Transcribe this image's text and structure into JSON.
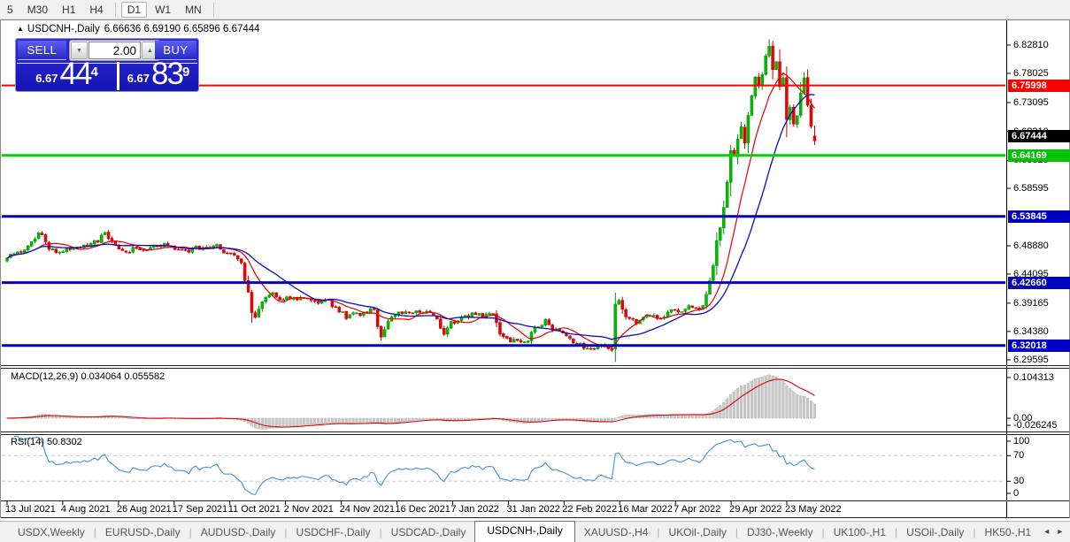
{
  "toolbar": {
    "items": [
      "5",
      "M30",
      "H1",
      "H4",
      "D1",
      "W1",
      "MN"
    ],
    "active": "D1"
  },
  "chart": {
    "collapse_icon": "▲",
    "title_symbol": "USDCNH-,Daily",
    "title_values": "6.66636 6.69190 6.65896 6.67444"
  },
  "trade_panel": {
    "sell_label": "SELL",
    "buy_label": "BUY",
    "volume": "2.00",
    "icon_down": "▼",
    "icon_up": "▲",
    "sell_price_main": "6.67",
    "sell_price_big": "44",
    "sell_price_sup": "4",
    "buy_price_main": "6.67",
    "buy_price_big": "83",
    "buy_price_sup": "9"
  },
  "macd": {
    "label": "MACD(12,26,9) 0.034064 0.055582",
    "axis_labels": [
      "0.104313",
      "0.00",
      "-0.026245"
    ]
  },
  "rsi": {
    "label": "RSI(14) 50.8302",
    "axis_labels": [
      "100",
      "70",
      "30",
      "0"
    ]
  },
  "tabs": {
    "items": [
      "USDX,Weekly",
      "EURUSD-,Daily",
      "AUDUSD-,Daily",
      "USDCHF-,Daily",
      "USDCAD-,Daily",
      "USDCNH-,Daily",
      "XAUUSD-,H4",
      "UKOil-,Daily",
      "DJ30-,Weekly",
      "UK100-,H1",
      "USOil-,Daily",
      "HK50-,H1"
    ],
    "active": "USDCNH-,Daily",
    "scroll_left_icon": "◂",
    "scroll_right_icon": "▸"
  },
  "chart_data": {
    "type": "candlestick",
    "title": "USDCNH-,Daily",
    "timeframe": "Daily",
    "last_bar": {
      "open": 6.66636,
      "high": 6.6919,
      "low": 6.65896,
      "close": 6.67444
    },
    "bar_count": 232,
    "dates": [
      "13 Jul 2021",
      "4 Aug 2021",
      "26 Aug 2021",
      "17 Sep 2021",
      "11 Oct 2021",
      "2 Nov 2021",
      "24 Nov 2021",
      "16 Dec 2021",
      "7 Jan 2022",
      "31 Jan 2022",
      "22 Feb 2022",
      "16 Mar 2022",
      "7 Apr 2022",
      "29 Apr 2022",
      "23 May 2022"
    ],
    "y_ticks": [
      "6.82810",
      "6.78025",
      "6.73095",
      "6.68210",
      "6.63325",
      "6.58595",
      "6.48880",
      "6.44095",
      "6.39165",
      "6.34380",
      "6.29595"
    ],
    "price_tags": [
      {
        "text": "6.75998",
        "type": "red"
      },
      {
        "text": "6.67444",
        "type": "black"
      },
      {
        "text": "6.64169",
        "type": "green"
      },
      {
        "text": "6.53845",
        "type": "blue"
      },
      {
        "text": "6.42660",
        "type": "blue"
      },
      {
        "text": "6.32018",
        "type": "blue"
      }
    ],
    "horizontal_lines": [
      {
        "price": 6.75998,
        "color": "red"
      },
      {
        "price": 6.64169,
        "color": "green"
      },
      {
        "price": 6.53845,
        "color": "blue"
      },
      {
        "price": 6.4266,
        "color": "blue"
      },
      {
        "price": 6.32018,
        "color": "blue"
      }
    ],
    "moving_averages": [
      {
        "color": "red",
        "period": 10
      },
      {
        "color": "blue",
        "period": 21
      }
    ],
    "y_range": [
      6.29,
      6.867
    ],
    "close_anchors": [
      [
        0,
        6.47
      ],
      [
        4,
        6.478
      ],
      [
        8,
        6.5
      ],
      [
        9,
        6.515
      ],
      [
        11,
        6.492
      ],
      [
        14,
        6.476
      ],
      [
        18,
        6.483
      ],
      [
        22,
        6.489
      ],
      [
        26,
        6.498
      ],
      [
        28,
        6.512
      ],
      [
        30,
        6.496
      ],
      [
        33,
        6.479
      ],
      [
        36,
        6.483
      ],
      [
        40,
        6.479
      ],
      [
        44,
        6.491
      ],
      [
        48,
        6.484
      ],
      [
        52,
        6.479
      ],
      [
        56,
        6.489
      ],
      [
        60,
        6.487
      ],
      [
        64,
        6.473
      ],
      [
        67,
        6.463
      ],
      [
        68,
        6.432
      ],
      [
        70,
        6.38
      ],
      [
        71,
        6.368
      ],
      [
        73,
        6.396
      ],
      [
        76,
        6.406
      ],
      [
        79,
        6.399
      ],
      [
        82,
        6.403
      ],
      [
        85,
        6.398
      ],
      [
        88,
        6.394
      ],
      [
        91,
        6.398
      ],
      [
        94,
        6.384
      ],
      [
        97,
        6.368
      ],
      [
        100,
        6.373
      ],
      [
        103,
        6.378
      ],
      [
        105,
        6.382
      ],
      [
        106,
        6.354
      ],
      [
        107,
        6.331
      ],
      [
        108,
        6.351
      ],
      [
        110,
        6.371
      ],
      [
        113,
        6.378
      ],
      [
        116,
        6.374
      ],
      [
        119,
        6.376
      ],
      [
        122,
        6.372
      ],
      [
        124,
        6.351
      ],
      [
        125,
        6.339
      ],
      [
        127,
        6.359
      ],
      [
        130,
        6.367
      ],
      [
        133,
        6.372
      ],
      [
        136,
        6.369
      ],
      [
        139,
        6.372
      ],
      [
        141,
        6.341
      ],
      [
        142,
        6.333
      ],
      [
        144,
        6.327
      ],
      [
        146,
        6.331
      ],
      [
        148,
        6.323
      ],
      [
        150,
        6.341
      ],
      [
        152,
        6.353
      ],
      [
        154,
        6.361
      ],
      [
        156,
        6.349
      ],
      [
        158,
        6.341
      ],
      [
        160,
        6.336
      ],
      [
        162,
        6.328
      ],
      [
        164,
        6.321
      ],
      [
        166,
        6.317
      ],
      [
        168,
        6.315
      ],
      [
        170,
        6.319
      ],
      [
        172,
        6.316
      ],
      [
        173,
        6.312
      ],
      [
        174,
        6.39
      ],
      [
        175,
        6.398
      ],
      [
        176,
        6.381
      ],
      [
        178,
        6.363
      ],
      [
        180,
        6.359
      ],
      [
        182,
        6.369
      ],
      [
        184,
        6.373
      ],
      [
        186,
        6.367
      ],
      [
        188,
        6.373
      ],
      [
        190,
        6.379
      ],
      [
        192,
        6.375
      ],
      [
        194,
        6.381
      ],
      [
        196,
        6.387
      ],
      [
        198,
        6.381
      ],
      [
        199,
        6.389
      ],
      [
        200,
        6.405
      ],
      [
        201,
        6.428
      ],
      [
        202,
        6.455
      ],
      [
        203,
        6.498
      ],
      [
        204,
        6.518
      ],
      [
        205,
        6.552
      ],
      [
        206,
        6.598
      ],
      [
        207,
        6.652
      ],
      [
        208,
        6.638
      ],
      [
        209,
        6.668
      ],
      [
        210,
        6.688
      ],
      [
        211,
        6.662
      ],
      [
        212,
        6.708
      ],
      [
        213,
        6.742
      ],
      [
        214,
        6.772
      ],
      [
        215,
        6.758
      ],
      [
        216,
        6.778
      ],
      [
        217,
        6.808
      ],
      [
        218,
        6.826
      ],
      [
        219,
        6.788
      ],
      [
        220,
        6.798
      ],
      [
        221,
        6.758
      ],
      [
        222,
        6.772
      ],
      [
        223,
        6.702
      ],
      [
        224,
        6.722
      ],
      [
        225,
        6.695
      ],
      [
        226,
        6.71
      ],
      [
        227,
        6.748
      ],
      [
        228,
        6.772
      ],
      [
        229,
        6.728
      ],
      [
        230,
        6.692
      ],
      [
        231,
        6.67444
      ]
    ],
    "indicators": {
      "macd": {
        "params": [
          12,
          26,
          9
        ],
        "main": 0.034064,
        "signal": 0.055582
      },
      "rsi": {
        "period": 14,
        "value": 50.8302,
        "levels": [
          70,
          30
        ]
      }
    }
  }
}
